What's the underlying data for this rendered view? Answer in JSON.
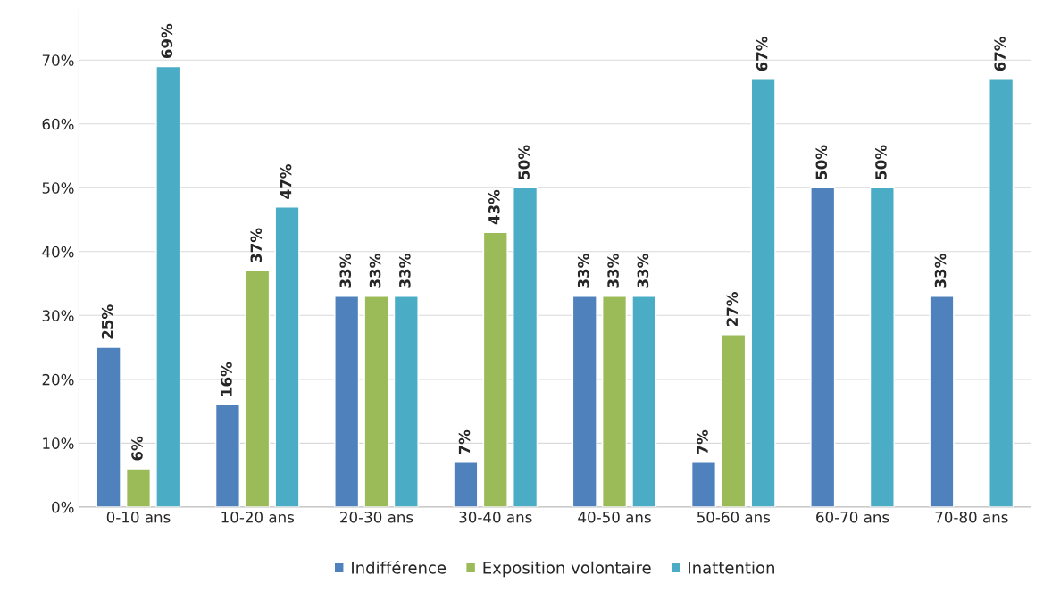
{
  "chart_data": {
    "type": "bar",
    "categories": [
      "0-10 ans",
      "10-20 ans",
      "20-30 ans",
      "30-40 ans",
      "40-50 ans",
      "50-60 ans",
      "60-70 ans",
      "70-80 ans"
    ],
    "series": [
      {
        "name": "Indifférence",
        "color": "#4f81bd",
        "values": [
          25,
          16,
          33,
          7,
          33,
          7,
          50,
          33
        ],
        "value_labels": [
          "25%",
          "16%",
          "33%",
          "7%",
          "33%",
          "7%",
          "50%",
          "33%"
        ]
      },
      {
        "name": "Exposition volontaire",
        "color": "#9bbb59",
        "values": [
          6,
          37,
          33,
          43,
          33,
          27,
          null,
          null
        ],
        "value_labels": [
          "6%",
          "37%",
          "33%",
          "43%",
          "33%",
          "27%",
          null,
          null
        ]
      },
      {
        "name": "Inattention",
        "color": "#4bacc6",
        "values": [
          69,
          47,
          33,
          50,
          33,
          67,
          50,
          67
        ],
        "value_labels": [
          "69%",
          "47%",
          "33%",
          "50%",
          "33%",
          "67%",
          "50%",
          "67%"
        ]
      }
    ],
    "ylim": [
      0,
      78
    ],
    "yticks": [
      {
        "value": 0,
        "label": "0%"
      },
      {
        "value": 10,
        "label": "10%"
      },
      {
        "value": 20,
        "label": "20%"
      },
      {
        "value": 30,
        "label": "30%"
      },
      {
        "value": 40,
        "label": "40%"
      },
      {
        "value": 50,
        "label": "50%"
      },
      {
        "value": 60,
        "label": "60%"
      },
      {
        "value": 70,
        "label": "70%"
      }
    ],
    "grid": "y",
    "legend": "bottom"
  }
}
